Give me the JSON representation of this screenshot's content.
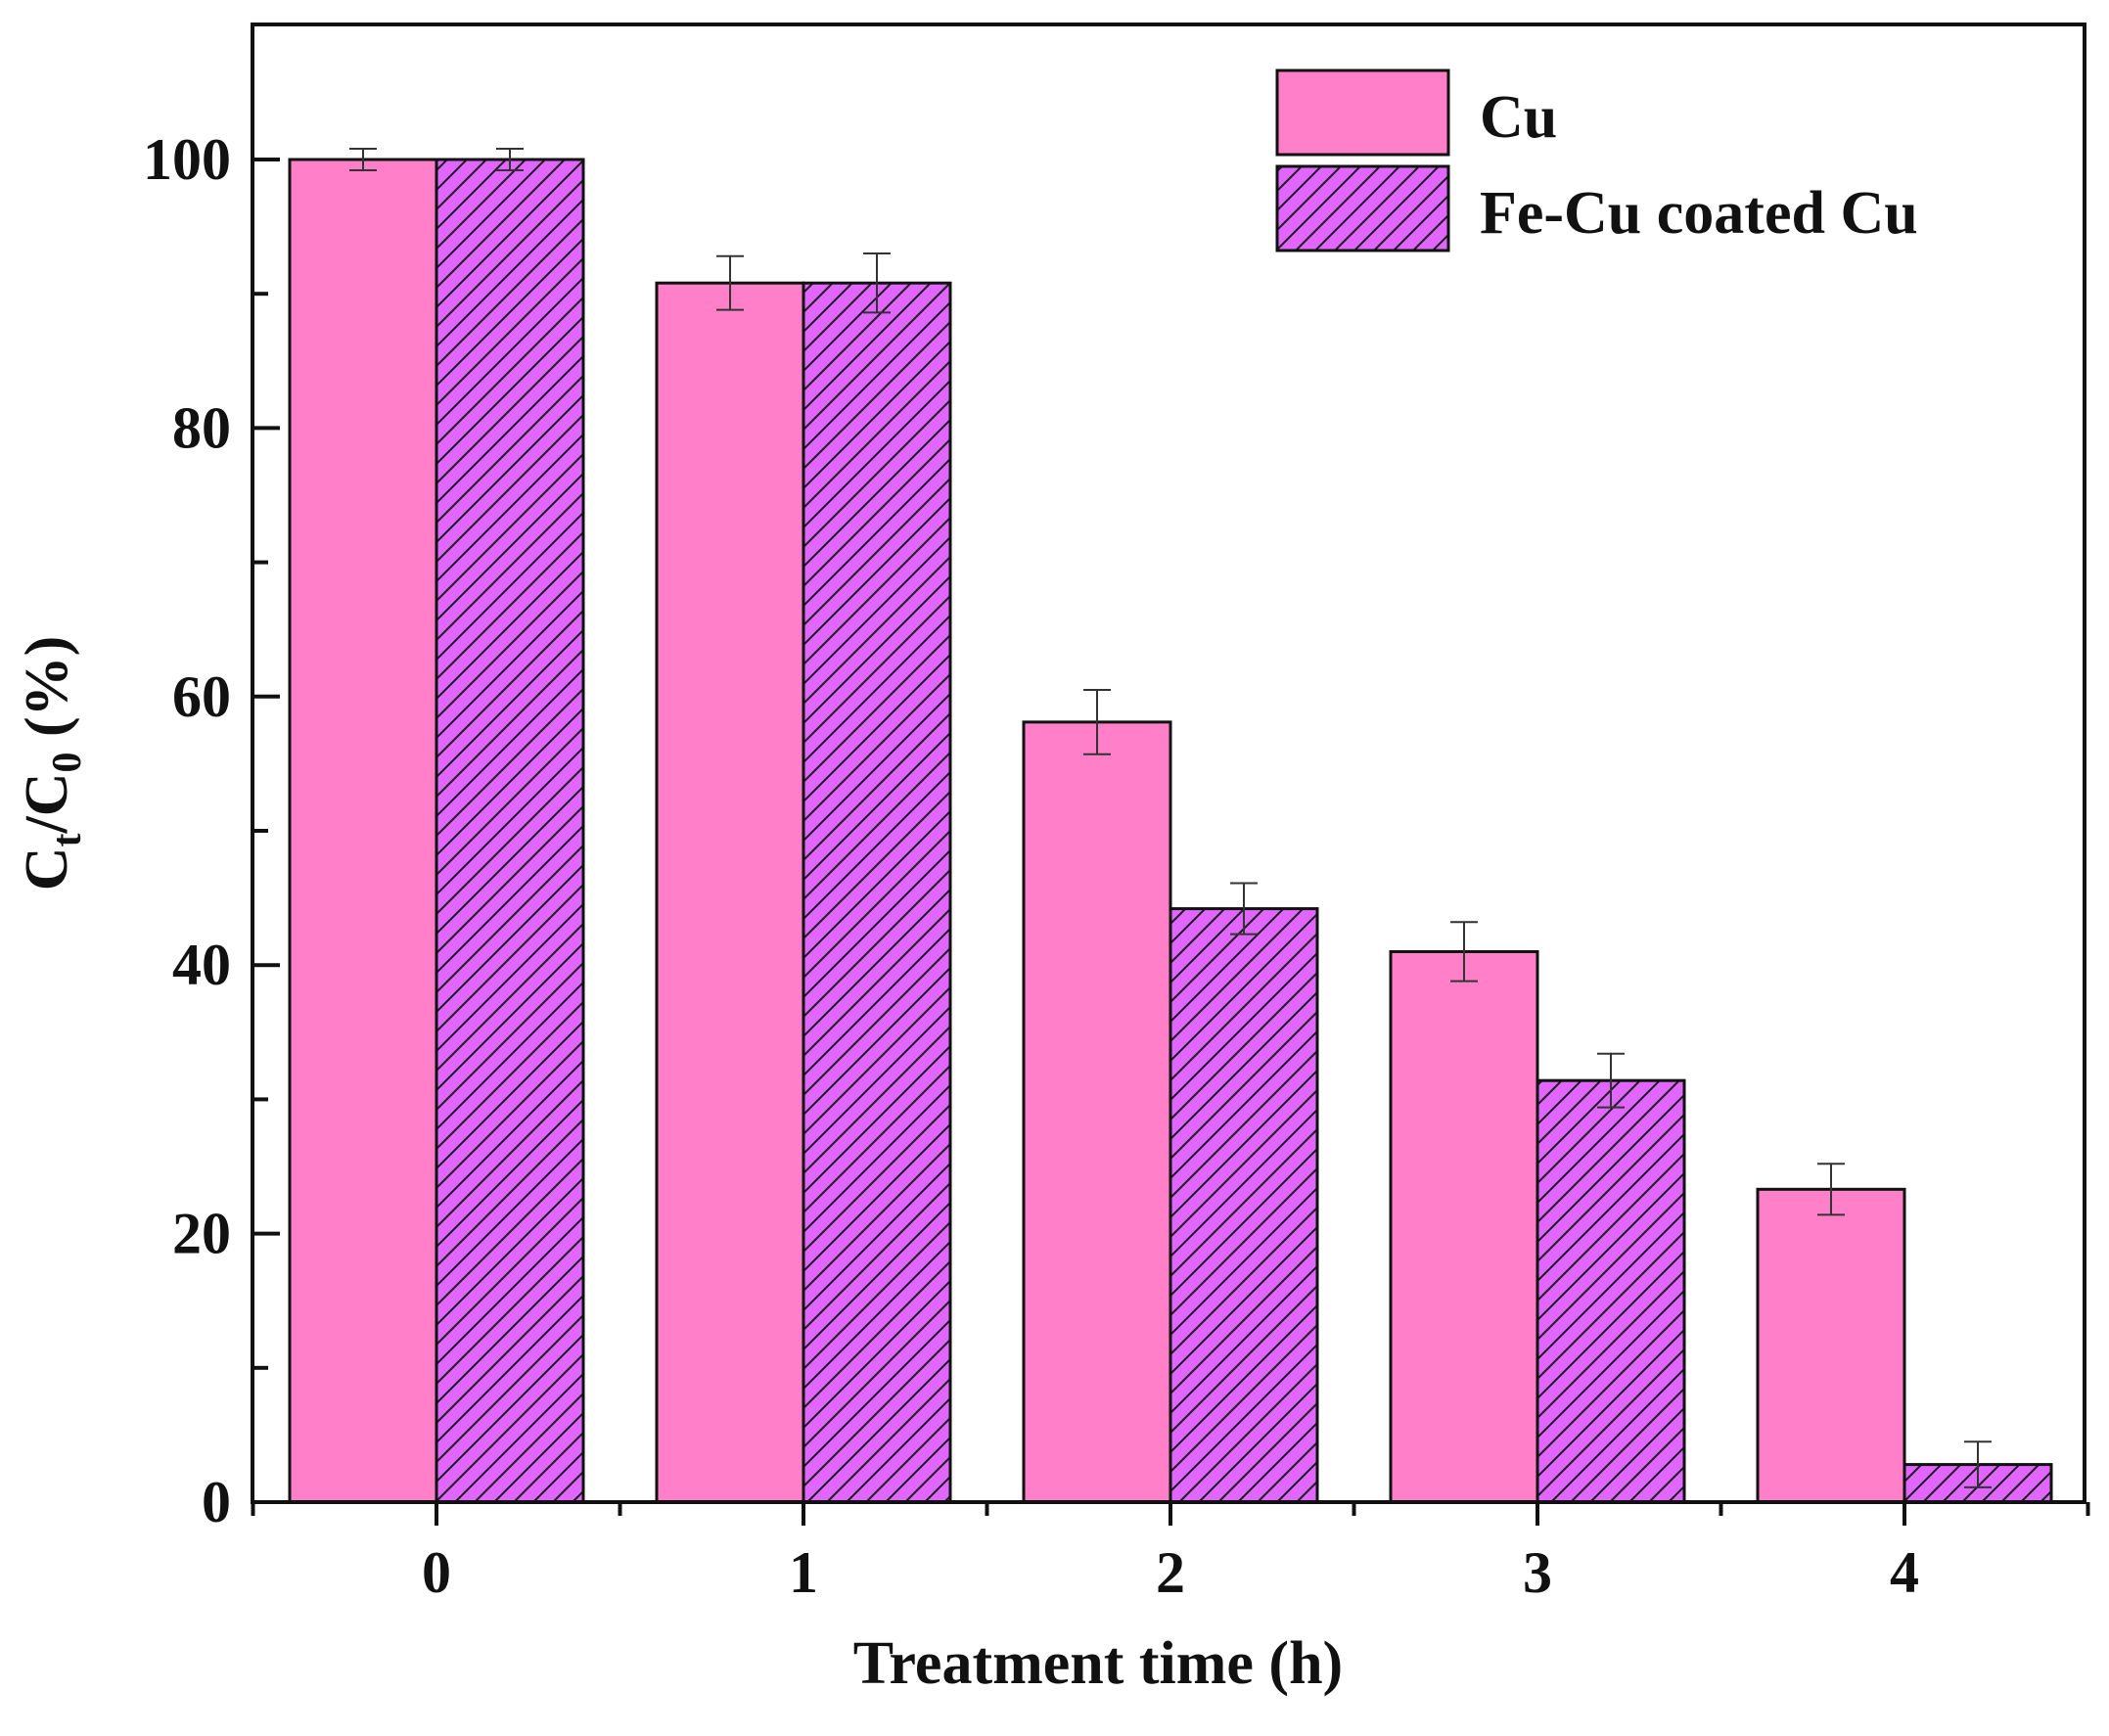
{
  "chart_data": {
    "type": "bar",
    "title": "",
    "xlabel": "Treatment time (h)",
    "ylabel": {
      "main": "C",
      "sub1": "t",
      "slash": "/C",
      "sub2": "0",
      "tail": " (%)"
    },
    "categories": [
      "0",
      "1",
      "2",
      "3",
      "4"
    ],
    "yticks": [
      "0",
      "20",
      "40",
      "60",
      "80",
      "100"
    ],
    "ylim": [
      0,
      110
    ],
    "grid": false,
    "legend_position": "top-right",
    "series": [
      {
        "name": "Cu",
        "color": "#ff80c8",
        "hatch": false,
        "values": [
          100,
          90.8,
          58.1,
          41.0,
          23.3
        ],
        "errors": [
          0.8,
          2.0,
          2.4,
          2.2,
          1.9
        ]
      },
      {
        "name": "Fe-Cu coated Cu",
        "color": "#e066ff",
        "hatch": true,
        "values": [
          100,
          90.8,
          44.2,
          31.4,
          2.8
        ],
        "errors": [
          0.8,
          2.2,
          1.9,
          2.0,
          1.7
        ]
      }
    ]
  }
}
